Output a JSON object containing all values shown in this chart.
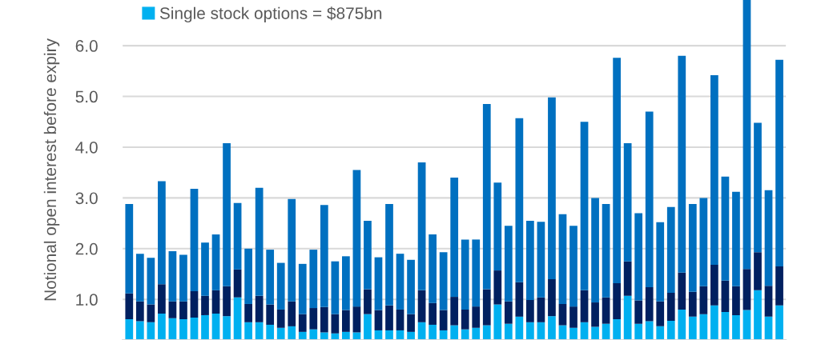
{
  "chart_data": {
    "type": "bar",
    "stacked": true,
    "ylabel": "Notional open interest before expiry",
    "categories": [
      null,
      null,
      null,
      null,
      null,
      null,
      null,
      null,
      null,
      null,
      null,
      null,
      null,
      null,
      null,
      null,
      null,
      null,
      null,
      null,
      null,
      null,
      null,
      null,
      null,
      null,
      null,
      null,
      null,
      null,
      null,
      null,
      null,
      null,
      null,
      null,
      null,
      null,
      null,
      null,
      null,
      null,
      null,
      null,
      null,
      null,
      null,
      null,
      null,
      null,
      null,
      null,
      null,
      null,
      null,
      null,
      null,
      null,
      null,
      null,
      null
    ],
    "series": [
      {
        "name": "Single stock options = $875bn",
        "color": "#00b0f0",
        "values": [
          0.61,
          0.57,
          0.55,
          0.72,
          0.63,
          0.61,
          0.64,
          0.69,
          0.72,
          0.67,
          1.04,
          0.55,
          0.55,
          0.5,
          0.44,
          0.47,
          0.36,
          0.41,
          0.35,
          0.33,
          0.36,
          0.35,
          0.71,
          0.39,
          0.39,
          0.39,
          0.36,
          0.55,
          0.5,
          0.39,
          0.49,
          0.41,
          0.44,
          0.49,
          0.9,
          0.52,
          0.66,
          0.55,
          0.55,
          0.67,
          0.49,
          0.44,
          0.55,
          0.46,
          0.52,
          0.61,
          1.07,
          0.52,
          0.57,
          0.47,
          0.58,
          0.8,
          0.66,
          0.71,
          0.88,
          0.75,
          0.69,
          0.79,
          1.18,
          0.66,
          0.88
        ]
      },
      {
        "color": "#002060",
        "values": [
          0.51,
          0.39,
          0.35,
          0.58,
          0.33,
          0.35,
          0.52,
          0.38,
          0.46,
          0.59,
          0.55,
          0.36,
          0.52,
          0.4,
          0.36,
          0.49,
          0.35,
          0.42,
          0.5,
          0.38,
          0.43,
          0.51,
          0.49,
          0.4,
          0.49,
          0.41,
          0.35,
          0.63,
          0.43,
          0.4,
          0.56,
          0.39,
          0.42,
          0.71,
          0.67,
          0.44,
          0.68,
          0.44,
          0.49,
          0.73,
          0.42,
          0.42,
          0.63,
          0.48,
          0.52,
          0.71,
          0.68,
          0.46,
          0.67,
          0.49,
          0.55,
          0.73,
          0.49,
          0.55,
          0.8,
          0.62,
          0.57,
          0.81,
          0.75,
          0.61,
          0.77
        ]
      },
      {
        "color": "#0070c0",
        "values": [
          1.76,
          0.94,
          0.92,
          2.03,
          0.99,
          0.92,
          2.02,
          1.05,
          1.1,
          2.82,
          1.31,
          1.09,
          2.13,
          1.08,
          0.92,
          2.02,
          0.99,
          1.15,
          2.01,
          1.04,
          1.06,
          2.69,
          1.35,
          1.04,
          2.0,
          1.1,
          1.07,
          2.52,
          1.35,
          1.14,
          2.35,
          1.38,
          1.32,
          3.65,
          1.73,
          1.49,
          3.23,
          1.56,
          1.49,
          3.58,
          1.77,
          1.59,
          3.32,
          2.06,
          1.84,
          4.44,
          2.33,
          1.72,
          3.46,
          1.56,
          1.69,
          4.27,
          1.73,
          1.74,
          3.74,
          2.05,
          1.86,
          5.3,
          2.55,
          1.88,
          4.07
        ]
      }
    ],
    "ylim": [
      0.2,
      6.9
    ],
    "yticks": [
      {
        "value": 1,
        "label": "1.0"
      },
      {
        "value": 2,
        "label": "2.0"
      },
      {
        "value": 3,
        "label": "3.0"
      },
      {
        "value": 4,
        "label": "4.0"
      },
      {
        "value": 5,
        "label": "5.0"
      },
      {
        "value": 6,
        "label": "6.0"
      }
    ],
    "tick_labels": "y",
    "grid": "y",
    "legend": "top left"
  }
}
